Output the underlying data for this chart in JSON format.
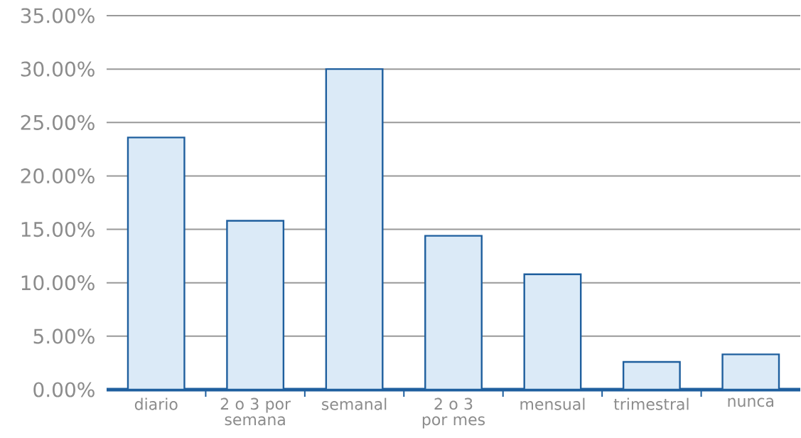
{
  "chart_data": {
    "type": "bar",
    "categories": [
      "diario",
      "2 o 3 por semana",
      "semanal",
      "2 o 3 por mes",
      "mensual",
      "trimestral",
      "nunca"
    ],
    "values": [
      23.6,
      15.8,
      30.0,
      14.4,
      10.8,
      2.6,
      3.3
    ],
    "color": "#dbeaf7",
    "ylim": [
      0,
      35
    ],
    "yticks": [
      {
        "value": 0,
        "label": "0.00%"
      },
      {
        "value": 5,
        "label": "5.00%"
      },
      {
        "value": 10,
        "label": "10.00%"
      },
      {
        "value": 15,
        "label": "15.00%"
      },
      {
        "value": 20,
        "label": "20.00%"
      },
      {
        "value": 25,
        "label": "25.00%"
      },
      {
        "value": 30,
        "label": "30.00%"
      },
      {
        "value": 35,
        "label": "35.00%"
      }
    ],
    "grid": "y"
  }
}
